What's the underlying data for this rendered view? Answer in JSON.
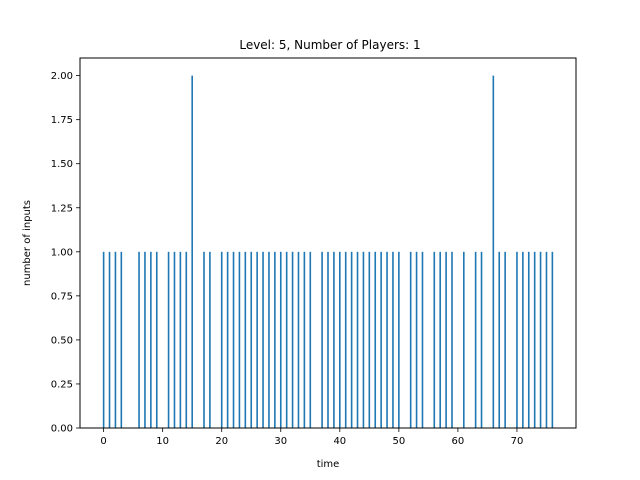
{
  "chart_data": {
    "type": "bar",
    "title": "Level: 5, Number of Players: 1",
    "xlabel": "time",
    "ylabel": "number of inputs",
    "xlim": [
      -4,
      80
    ],
    "ylim": [
      0,
      2.1
    ],
    "xticks": [
      "0",
      "10",
      "20",
      "30",
      "40",
      "50",
      "60",
      "70"
    ],
    "xtick_values": [
      0,
      10,
      20,
      30,
      40,
      50,
      60,
      70
    ],
    "yticks": [
      "0.00",
      "0.25",
      "0.50",
      "0.75",
      "1.00",
      "1.25",
      "1.50",
      "1.75",
      "2.00"
    ],
    "ytick_values": [
      0,
      0.25,
      0.5,
      0.75,
      1.0,
      1.25,
      1.5,
      1.75,
      2.0
    ],
    "grid": false,
    "bar_color": "#1f77b4",
    "x": [
      0,
      1,
      2,
      3,
      6,
      7,
      8,
      9,
      11,
      12,
      13,
      14,
      15,
      17,
      18,
      20,
      21,
      22,
      23,
      24,
      25,
      26,
      27,
      28,
      29,
      30,
      31,
      32,
      33,
      34,
      35,
      37,
      38,
      39,
      40,
      41,
      42,
      43,
      44,
      45,
      46,
      47,
      48,
      49,
      50,
      52,
      53,
      54,
      56,
      57,
      58,
      59,
      61,
      63,
      64,
      66,
      67,
      68,
      70,
      71,
      72,
      73,
      74,
      75,
      76
    ],
    "values": [
      1,
      1,
      1,
      1,
      1,
      1,
      1,
      1,
      1,
      1,
      1,
      1,
      2,
      1,
      1,
      1,
      1,
      1,
      1,
      1,
      1,
      1,
      1,
      1,
      1,
      1,
      1,
      1,
      1,
      1,
      1,
      1,
      1,
      1,
      1,
      1,
      1,
      1,
      1,
      1,
      1,
      1,
      1,
      1,
      1,
      1,
      1,
      1,
      1,
      1,
      1,
      1,
      1,
      1,
      1,
      2,
      1,
      1,
      1,
      1,
      1,
      1,
      1,
      1,
      1
    ]
  }
}
